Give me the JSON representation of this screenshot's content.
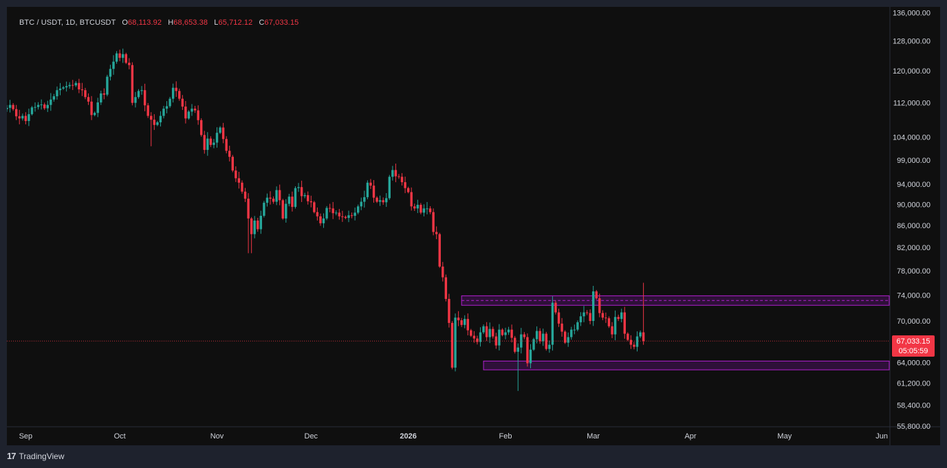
{
  "header": {
    "symbol": "BTC / USDT, 1D, BTCUSDT",
    "open_label": "O",
    "open": "68,113.92",
    "high_label": "H",
    "high": "68,653.38",
    "low_label": "L",
    "low": "65,712.12",
    "close_label": "C",
    "close": "67,033.15"
  },
  "price_tag": {
    "price": "67,033.15",
    "countdown": "05:05:59",
    "value": 67033.15
  },
  "brand": {
    "name": "TradingView"
  },
  "colors": {
    "up": "#26a69a",
    "down": "#f23645",
    "zone_fill": "#3a1247",
    "zone_border": "#b21fd1",
    "background": "#0f0f0f",
    "text": "#d1d4dc"
  },
  "chart_data": {
    "type": "candlestick",
    "timeframe": "1D",
    "scale": "log",
    "y_ticks": [
      {
        "value": 136000,
        "label": "136,000.00"
      },
      {
        "value": 128000,
        "label": "128,000.00"
      },
      {
        "value": 120000,
        "label": "120,000.00"
      },
      {
        "value": 112000,
        "label": "112,000.00"
      },
      {
        "value": 104000,
        "label": "104,000.00"
      },
      {
        "value": 99000,
        "label": "99,000.00"
      },
      {
        "value": 94000,
        "label": "94,000.00"
      },
      {
        "value": 90000,
        "label": "90,000.00"
      },
      {
        "value": 86000,
        "label": "86,000.00"
      },
      {
        "value": 82000,
        "label": "82,000.00"
      },
      {
        "value": 78000,
        "label": "78,000.00"
      },
      {
        "value": 74000,
        "label": "74,000.00"
      },
      {
        "value": 70000,
        "label": "70,000.00"
      },
      {
        "value": 64000,
        "label": "64,000.00"
      },
      {
        "value": 61200,
        "label": "61,200.00"
      },
      {
        "value": 58400,
        "label": "58,400.00"
      },
      {
        "value": 55800,
        "label": "55,800.00"
      }
    ],
    "x_ticks": [
      {
        "label": "Sep",
        "date": "2025-09-01",
        "bold": false
      },
      {
        "label": "Oct",
        "date": "2025-10-01",
        "bold": false
      },
      {
        "label": "Nov",
        "date": "2025-11-01",
        "bold": false
      },
      {
        "label": "Dec",
        "date": "2025-12-01",
        "bold": false
      },
      {
        "label": "2026",
        "date": "2026-01-01",
        "bold": true
      },
      {
        "label": "Feb",
        "date": "2026-02-01",
        "bold": false
      },
      {
        "label": "Mar",
        "date": "2026-03-01",
        "bold": false
      },
      {
        "label": "Apr",
        "date": "2026-04-01",
        "bold": false
      },
      {
        "label": "May",
        "date": "2026-05-01",
        "bold": false
      },
      {
        "label": "Jun",
        "date": "2026-06-01",
        "bold": false
      }
    ],
    "zones": [
      {
        "name": "resistance",
        "low": 72400,
        "high": 73900,
        "start": "2026-01-18"
      },
      {
        "name": "support",
        "low": 63000,
        "high": 64200,
        "start": "2026-01-25"
      }
    ],
    "start_date": "2025-08-26",
    "closes": [
      110800,
      111500,
      110500,
      108800,
      108300,
      108900,
      107700,
      109300,
      110900,
      111000,
      111500,
      111600,
      110700,
      111500,
      112800,
      113600,
      115100,
      115500,
      115800,
      116100,
      116400,
      116300,
      116900,
      115300,
      115100,
      113400,
      112300,
      109100,
      109600,
      112100,
      114300,
      114000,
      118500,
      120500,
      122400,
      124600,
      123400,
      124400,
      122100,
      121500,
      112000,
      113400,
      114900,
      115100,
      111400,
      108900,
      108000,
      106800,
      107400,
      108900,
      110600,
      111200,
      113000,
      115700,
      114900,
      113000,
      111100,
      108300,
      109900,
      110600,
      110200,
      107900,
      104500,
      101200,
      103700,
      102300,
      102800,
      105000,
      106200,
      103600,
      101000,
      99700,
      96800,
      95200,
      94300,
      92500,
      91100,
      87300,
      84400,
      86900,
      85300,
      87800,
      90300,
      91300,
      91100,
      90500,
      92800,
      90800,
      87300,
      90100,
      91500,
      89500,
      93200,
      93400,
      91600,
      91800,
      90600,
      90400,
      88500,
      87700,
      86400,
      87300,
      89300,
      89200,
      88300,
      88400,
      87700,
      87600,
      87400,
      87900,
      87800,
      88400,
      89600,
      90500,
      91400,
      94300,
      93700,
      91300,
      90500,
      90800,
      90400,
      91200,
      95500,
      96900,
      95600,
      95500,
      94400,
      93200,
      92400,
      89600,
      89200,
      89900,
      88400,
      89200,
      89200,
      88500,
      84800,
      84400,
      78700,
      76900,
      73400,
      69700,
      63300,
      70500,
      70100,
      69400,
      70300,
      68600,
      67800,
      67400,
      66900,
      68300,
      69200,
      67600,
      68800,
      67700,
      66400,
      68700,
      67900,
      68300,
      68700,
      67500,
      65500,
      66100,
      68000,
      67600,
      63900,
      65800,
      67300,
      68500,
      67000,
      68100,
      65900,
      66500,
      72800,
      71300,
      69600,
      68400,
      66800,
      67600,
      68700,
      68700,
      69800,
      70700,
      71300,
      71200,
      70000,
      74600,
      73500,
      71200,
      70500,
      70400,
      69200,
      68000,
      70600,
      70300,
      71300,
      68100,
      67200,
      66500,
      66200,
      67700,
      68300,
      67033
    ]
  }
}
